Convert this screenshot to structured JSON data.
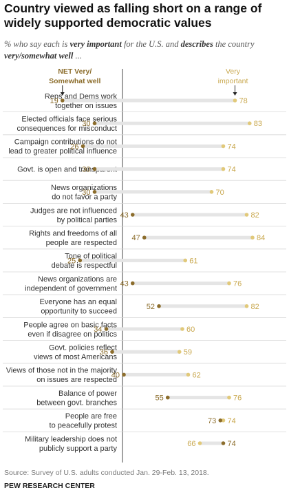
{
  "title": "Country viewed as falling short on a range of widely supported democratic values",
  "subtitle": {
    "part1": "% who say each is ",
    "bold1": "very important",
    "part2": " for the U.S. and ",
    "bold2": "describes",
    "part3": " the country ",
    "bold3": "very/somewhat well",
    "part4": " ..."
  },
  "colors": {
    "net": "#8c6d2c",
    "very": "#e1c97a",
    "bar": "#e5e5e5",
    "label": "#333333",
    "value_net": "#8c6d2c",
    "value_very": "#c9a84f"
  },
  "chart_data": {
    "type": "dot",
    "legend": {
      "net_label": [
        "NET Very/",
        "Somewhat well"
      ],
      "very_label": [
        "Very",
        "important"
      ]
    },
    "series": [
      {
        "name": "NET Very/Somewhat well",
        "values": [
          19,
          30,
          26,
          30,
          30,
          43,
          47,
          25,
          43,
          52,
          34,
          36,
          40,
          55,
          73,
          74
        ]
      },
      {
        "name": "Very important",
        "values": [
          78,
          83,
          74,
          74,
          70,
          82,
          84,
          61,
          76,
          82,
          60,
          59,
          62,
          76,
          74,
          66
        ]
      }
    ],
    "categories": [
      [
        "Reps and Dems work",
        "together on issues"
      ],
      [
        "Elected officials face serious",
        "consequences for misconduct"
      ],
      [
        "Campaign contributions do not",
        "lead to greater political influence"
      ],
      [
        "Govt. is open and transparent"
      ],
      [
        "News organizations",
        "do not favor a party"
      ],
      [
        "Judges are not influenced",
        "by political parties"
      ],
      [
        "Rights and freedoms of all",
        "people are respected"
      ],
      [
        "Tone of political",
        "debate is respectful"
      ],
      [
        "News organizations are",
        "independent of government"
      ],
      [
        "Everyone has an equal",
        "opportunity to succeed"
      ],
      [
        "People agree on basic facts",
        "even if disagree on politics"
      ],
      [
        "Govt. policies reflect",
        "views of most Americans"
      ],
      [
        "Views of those not in the majority",
        "on issues are respected"
      ],
      [
        "Balance of power",
        "between govt. branches"
      ],
      [
        "People are free",
        "to peacefully protest"
      ],
      [
        "Military leadership does not",
        "publicly support a party"
      ]
    ]
  },
  "source": "Source: Survey of U.S. adults conducted Jan. 29-Feb. 13, 2018.",
  "credit": "PEW RESEARCH CENTER"
}
